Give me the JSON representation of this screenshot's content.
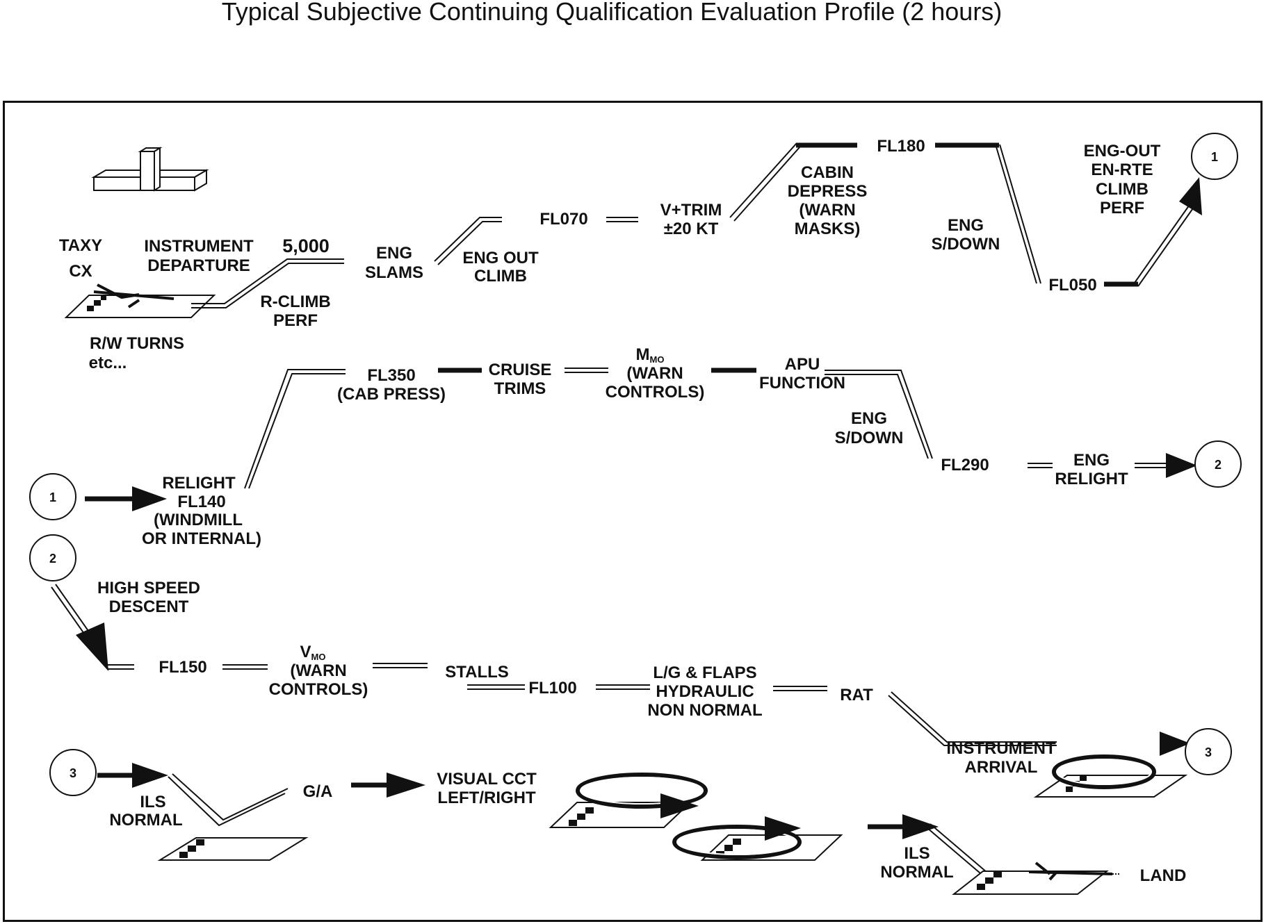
{
  "title": "Typical Subjective Continuing Qualification Evaluation Profile (2 hours)",
  "colors": {
    "ink": "#111111",
    "background": "#ffffff"
  },
  "connectors": {
    "c1": "1",
    "c2": "2",
    "c3": "3"
  },
  "row1": {
    "taxy": "TAXY",
    "cx": "CX",
    "instrument_departure": [
      "INSTRUMENT",
      "DEPARTURE"
    ],
    "rw_turns": [
      "R/W TURNS",
      "etc..."
    ],
    "alt_5000": "5,000",
    "r_climb_perf": [
      "R-CLIMB",
      "PERF"
    ],
    "eng_slams": [
      "ENG",
      "SLAMS"
    ],
    "eng_out_climb": [
      "ENG OUT",
      "CLIMB"
    ],
    "fl070": "FL070",
    "v_trim": [
      "V+TRIM",
      "±20 KT"
    ],
    "cabin_depress": [
      "CABIN",
      "DEPRESS",
      "(WARN",
      "MASKS)"
    ],
    "fl180": "FL180",
    "eng_sdown": [
      "ENG",
      "S/DOWN"
    ],
    "fl050": "FL050",
    "eng_out_enrte": [
      "ENG-OUT",
      "EN-RTE",
      "CLIMB",
      "PERF"
    ]
  },
  "row2": {
    "relight_fl140": [
      "RELIGHT",
      "FL140",
      "(WINDMILL",
      "OR INTERNAL)"
    ],
    "fl350": [
      "FL350",
      "(CAB PRESS)"
    ],
    "cruise_trims": [
      "CRUISE",
      "TRIMS"
    ],
    "mmo": {
      "main": "M",
      "sub": "MO",
      "lines": [
        "(WARN",
        "CONTROLS)"
      ]
    },
    "apu_function": [
      "APU",
      "FUNCTION"
    ],
    "eng_sdown": [
      "ENG",
      "S/DOWN"
    ],
    "fl290": "FL290",
    "eng_relight": [
      "ENG",
      "RELIGHT"
    ]
  },
  "row3": {
    "high_speed_descent": [
      "HIGH SPEED",
      "DESCENT"
    ],
    "fl150": "FL150",
    "vmo": {
      "main": "V",
      "sub": "MO",
      "lines": [
        "(WARN",
        "CONTROLS)"
      ]
    },
    "stalls": "STALLS",
    "fl100": "FL100",
    "lg_flaps": [
      "L/G & FLAPS",
      "HYDRAULIC",
      "NON NORMAL"
    ],
    "rat": "RAT",
    "instrument_arrival": [
      "INSTRUMENT",
      "ARRIVAL"
    ]
  },
  "row4": {
    "ils_normal_1": [
      "ILS",
      "NORMAL"
    ],
    "ga": "G/A",
    "visual_cct": [
      "VISUAL CCT",
      "LEFT/RIGHT"
    ],
    "ils_normal_2": [
      "ILS",
      "NORMAL"
    ],
    "land": "LAND"
  }
}
